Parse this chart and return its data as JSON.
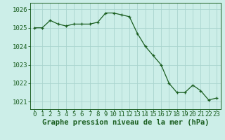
{
  "x": [
    0,
    1,
    2,
    3,
    4,
    5,
    6,
    7,
    8,
    9,
    10,
    11,
    12,
    13,
    14,
    15,
    16,
    17,
    18,
    19,
    20,
    21,
    22,
    23
  ],
  "y": [
    1025.0,
    1025.0,
    1025.4,
    1025.2,
    1025.1,
    1025.2,
    1025.2,
    1025.2,
    1025.3,
    1025.8,
    1025.8,
    1025.7,
    1025.6,
    1024.7,
    1024.0,
    1023.5,
    1023.0,
    1022.0,
    1021.5,
    1021.5,
    1021.9,
    1021.6,
    1021.1,
    1021.2
  ],
  "line_color": "#1a5e20",
  "marker": "+",
  "bg_color": "#cceee8",
  "grid_color": "#aad4ce",
  "ylabel_ticks": [
    1021,
    1022,
    1023,
    1024,
    1025,
    1026
  ],
  "xlabel_ticks": [
    0,
    1,
    2,
    3,
    4,
    5,
    6,
    7,
    8,
    9,
    10,
    11,
    12,
    13,
    14,
    15,
    16,
    17,
    18,
    19,
    20,
    21,
    22,
    23
  ],
  "xlabel_label": "Graphe pression niveau de la mer (hPa)",
  "ylim": [
    1020.6,
    1026.35
  ],
  "xlim": [
    -0.5,
    23.5
  ],
  "tick_color": "#1a5e20",
  "label_color": "#1a5e20",
  "axis_color": "#1a5e20",
  "xlabel_fontsize": 7.5,
  "tick_fontsize": 6.5
}
